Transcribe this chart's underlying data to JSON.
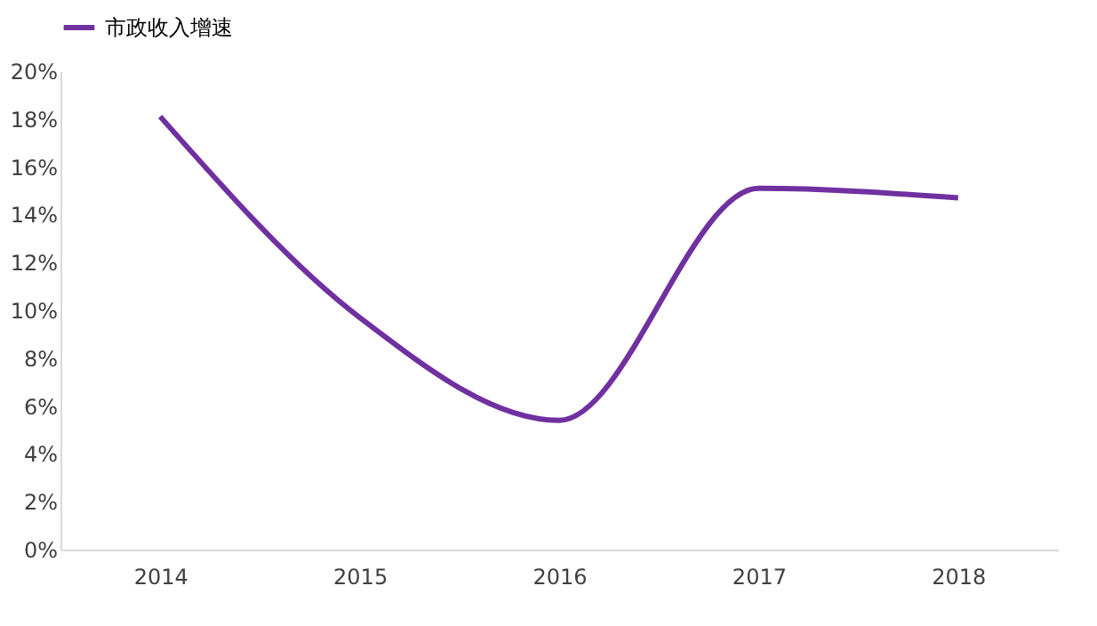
{
  "chart_data": {
    "type": "line",
    "categories": [
      "2014",
      "2015",
      "2016",
      "2017",
      "2018"
    ],
    "series": [
      {
        "name": "市政收入增速",
        "color": "#7030a0",
        "values": [
          18.1,
          9.7,
          5.4,
          15.1,
          14.7
        ]
      }
    ],
    "ylim": [
      0,
      20
    ],
    "yticks": [
      {
        "value": 0,
        "label": "0%"
      },
      {
        "value": 2,
        "label": "2%"
      },
      {
        "value": 4,
        "label": "4%"
      },
      {
        "value": 6,
        "label": "6%"
      },
      {
        "value": 8,
        "label": "8%"
      },
      {
        "value": 10,
        "label": "10%"
      },
      {
        "value": 12,
        "label": "12%"
      },
      {
        "value": 14,
        "label": "14%"
      },
      {
        "value": 16,
        "label": "16%"
      },
      {
        "value": 18,
        "label": "18%"
      },
      {
        "value": 20,
        "label": "20%"
      }
    ],
    "grid": false,
    "legend": "top",
    "marker": "none",
    "line_style": "solid"
  }
}
